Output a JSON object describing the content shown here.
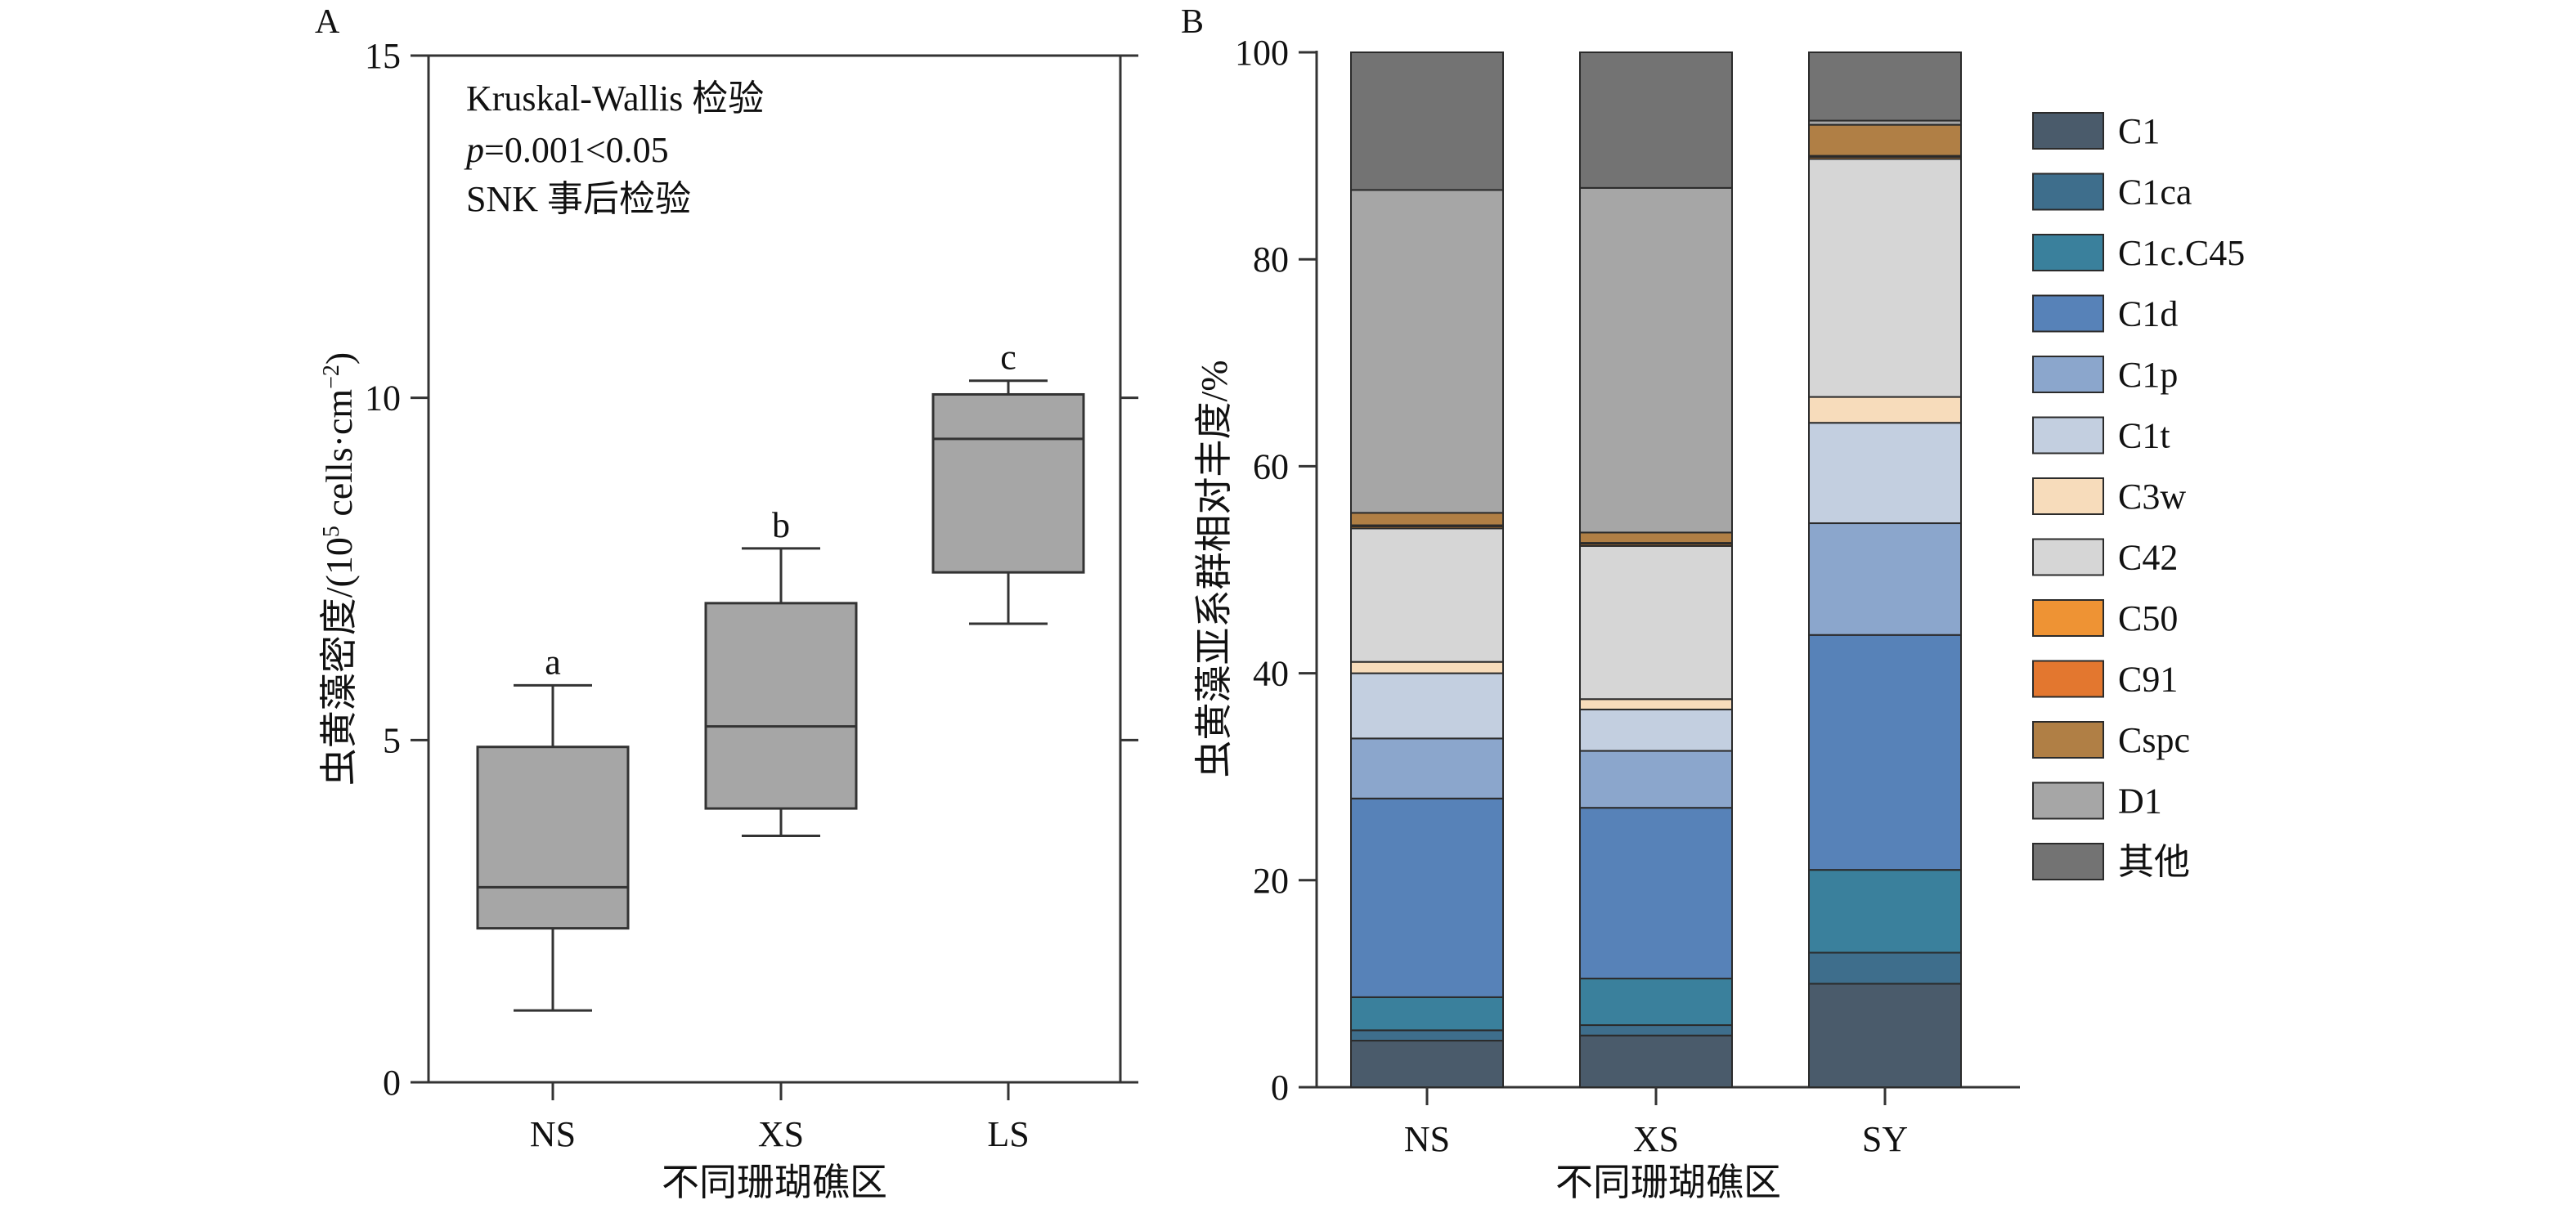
{
  "chart_data": [
    {
      "panel_label": "A",
      "type": "box",
      "categories": [
        "NS",
        "XS",
        "LS"
      ],
      "xlabel": "不同珊瑚礁区",
      "ylabel_main": "虫黄藻密度/(10",
      "ylabel_sup1": "5",
      "ylabel_mid": " cells·cm",
      "ylabel_sup2": "−2",
      "ylabel_end": ")",
      "ylim": [
        0,
        15
      ],
      "yticks": [
        "0",
        "5",
        "10",
        "15"
      ],
      "ytick_values": [
        0,
        5,
        10,
        15
      ],
      "boxes": [
        {
          "whisker_low": 1.05,
          "q1": 2.25,
          "median": 2.85,
          "q3": 4.9,
          "whisker_high": 5.8,
          "letter": "a"
        },
        {
          "whisker_low": 3.6,
          "q1": 4.0,
          "median": 5.2,
          "q3": 7.0,
          "whisker_high": 7.8,
          "letter": "b"
        },
        {
          "whisker_low": 6.7,
          "q1": 7.45,
          "median": 9.4,
          "q3": 10.05,
          "whisker_high": 10.25,
          "letter": "c"
        }
      ],
      "annotation": {
        "line1": "Kruskal-Wallis 检验",
        "line2_italic": "p",
        "line2_rest": "=0.001<0.05",
        "line3": "SNK 事后检验"
      },
      "colors": {
        "box": "#a6a6a6",
        "line": "#333333"
      }
    },
    {
      "panel_label": "B",
      "type": "stacked_bar",
      "categories": [
        "NS",
        "XS",
        "SY"
      ],
      "xlabel": "不同珊瑚礁区",
      "ylabel": "虫黄藻亚系群相对丰度/%",
      "ylim": [
        0,
        100
      ],
      "yticks": [
        "0",
        "20",
        "40",
        "60",
        "80",
        "100"
      ],
      "ytick_values": [
        0,
        20,
        40,
        60,
        80,
        100
      ],
      "series": [
        {
          "name": "C1",
          "color": "#4a5b6b",
          "values": [
            4.5,
            5.0,
            10.0
          ]
        },
        {
          "name": "C1ca",
          "color": "#3e6e8c",
          "values": [
            1.0,
            1.0,
            3.0
          ]
        },
        {
          "name": "C1c.C45",
          "color": "#3a809c",
          "values": [
            3.2,
            4.5,
            8.0
          ]
        },
        {
          "name": "C1d",
          "color": "#5782b8",
          "values": [
            19.2,
            16.5,
            22.7
          ]
        },
        {
          "name": "C1p",
          "color": "#8ba6cc",
          "values": [
            5.8,
            5.5,
            10.8
          ]
        },
        {
          "name": "C1t",
          "color": "#c3cfe0",
          "values": [
            6.3,
            4.0,
            9.7
          ]
        },
        {
          "name": "C3w",
          "color": "#f7dcbb",
          "values": [
            1.1,
            1.0,
            2.5
          ]
        },
        {
          "name": "C42",
          "color": "#d6d6d6",
          "values": [
            12.9,
            14.8,
            23.0
          ]
        },
        {
          "name": "C50",
          "color": "#ee9334",
          "values": [
            0.2,
            0.2,
            0.2
          ]
        },
        {
          "name": "C91",
          "color": "#e3772f",
          "values": [
            0.1,
            0.1,
            0.1
          ]
        },
        {
          "name": "Cspc",
          "color": "#b07f45",
          "values": [
            1.2,
            1.0,
            3.0
          ]
        },
        {
          "name": "D1",
          "color": "#a6a6a6",
          "values": [
            31.2,
            33.3,
            0.4
          ]
        },
        {
          "name": "其他",
          "color": "#737373",
          "values": [
            13.3,
            13.1,
            6.6
          ]
        }
      ]
    }
  ]
}
